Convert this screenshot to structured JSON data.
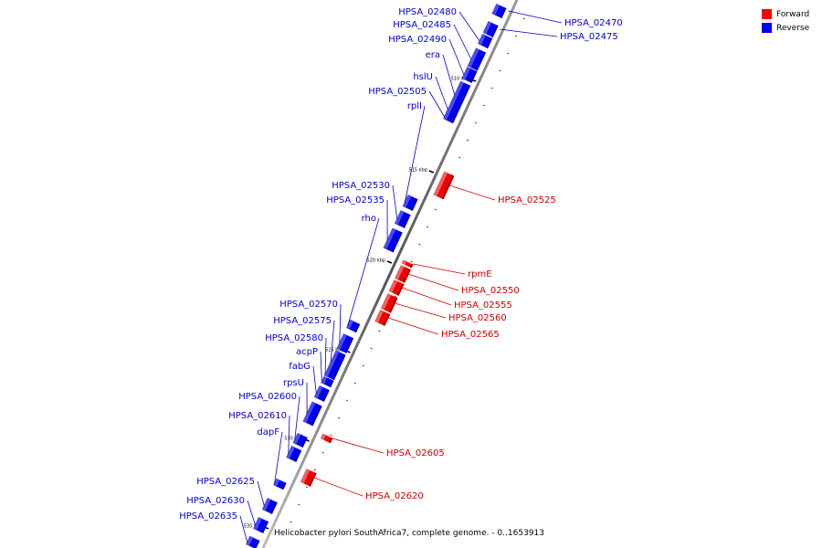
{
  "caption": "Helicobacter pylori SouthAfrica7, complete genome. - 0..1653913",
  "legend": [
    {
      "label": "Forward",
      "color": "#ff0000"
    },
    {
      "label": "Reverse",
      "color": "#0000ff"
    }
  ],
  "scale_ticks": [
    "510 kbp",
    "515 kbp",
    "520 kbp",
    "525 kbp",
    "530 kbp",
    "535 kbp"
  ],
  "reverse_genes": [
    "HPSA_02470",
    "HPSA_02475",
    "HPSA_02480",
    "HPSA_02485",
    "HPSA_02490",
    "era",
    "hslU",
    "HPSA_02505",
    "rplI",
    "HPSA_02530",
    "HPSA_02535",
    "rho",
    "HPSA_02570",
    "HPSA_02575",
    "HPSA_02580",
    "acpP",
    "fabG",
    "rpsU",
    "HPSA_02600",
    "HPSA_02610",
    "dapF",
    "HPSA_02625",
    "HPSA_02630",
    "HPSA_02635"
  ],
  "forward_genes": [
    "HPSA_02525",
    "rpmE",
    "HPSA_02550",
    "HPSA_02555",
    "HPSA_02560",
    "HPSA_02565",
    "HPSA_02605",
    "HPSA_02620"
  ]
}
